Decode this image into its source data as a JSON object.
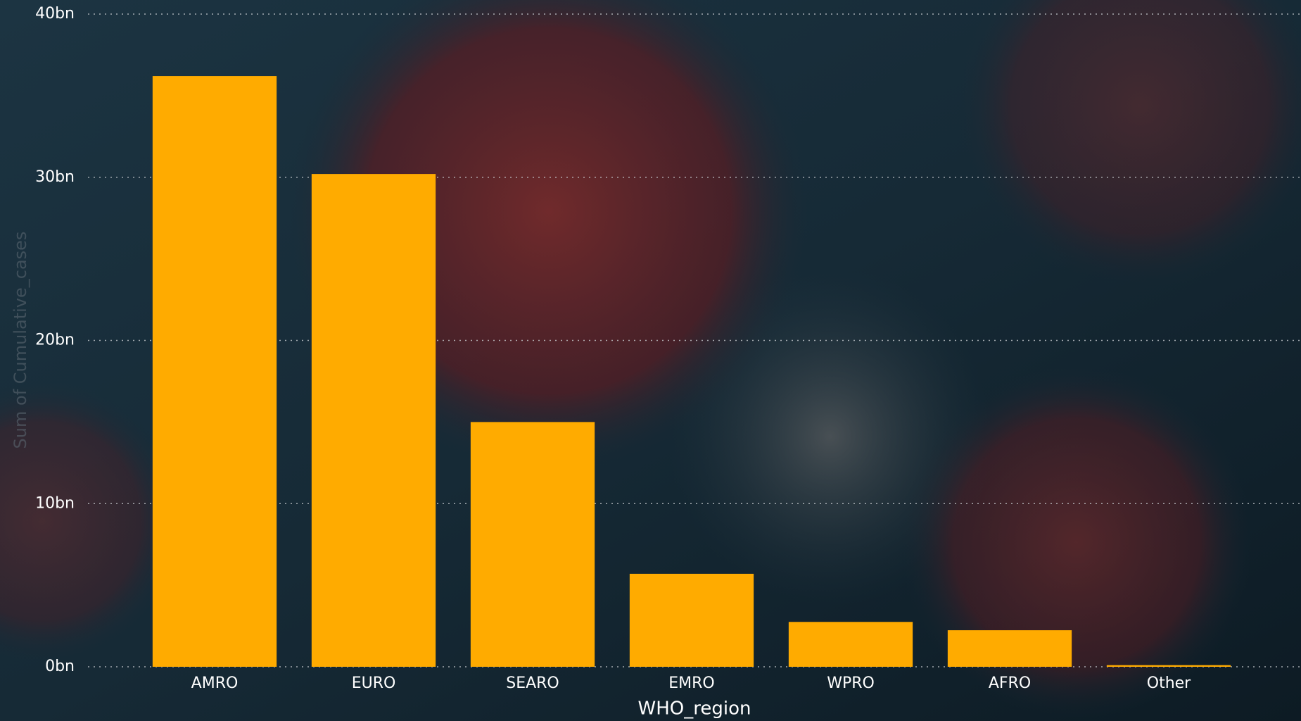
{
  "chart_data": {
    "type": "bar",
    "x_label": "WHO_region",
    "y_label": "Sum of Cumulative_cases",
    "categories": [
      "AMRO",
      "EURO",
      "SEARO",
      "EMRO",
      "WPRO",
      "AFRO",
      "Other"
    ],
    "values": [
      36.2,
      30.2,
      15.0,
      5.7,
      2.75,
      2.24,
      0.1
    ],
    "color": "#ffab00",
    "ylim": [
      0,
      40
    ],
    "yticks": [
      {
        "value": 0,
        "label": "0bn"
      },
      {
        "value": 10,
        "label": "10bn"
      },
      {
        "value": 20,
        "label": "20bn"
      },
      {
        "value": 30,
        "label": "30bn"
      },
      {
        "value": 40,
        "label": "40bn"
      }
    ],
    "grid": true
  }
}
